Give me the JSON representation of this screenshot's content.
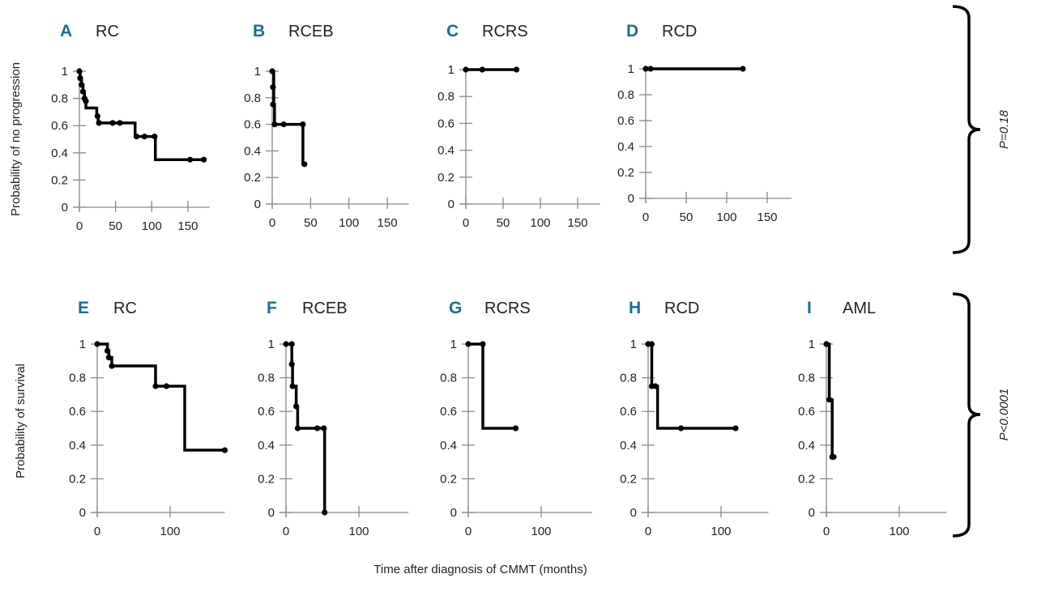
{
  "figure": {
    "ylabel_top": "Probability of no progression",
    "ylabel_bottom": "Probability of survival",
    "xlabel": "Time after diagnosis of CMMT (months)",
    "pvalue_top": "P=0.18",
    "pvalue_bottom": "P<0.0001",
    "letter_color": "#1b6f8f"
  },
  "chart_data": [
    {
      "type": "line",
      "letter": "A",
      "title": "RC",
      "ylabel": "Probability of no progression",
      "xlabel": "Time after diagnosis of CMMT (months)",
      "ylim": [
        0,
        1
      ],
      "xlim": [
        0,
        180
      ],
      "xticks": [
        0,
        50,
        100,
        150
      ],
      "yticks": [
        "0",
        "0.2",
        "0.4",
        "0.6",
        "0.8",
        "1"
      ],
      "steps": [
        [
          0,
          1
        ],
        [
          1,
          0.95
        ],
        [
          3,
          0.9
        ],
        [
          5,
          0.85
        ],
        [
          7,
          0.8
        ],
        [
          9,
          0.73
        ],
        [
          24,
          0.67
        ],
        [
          26,
          0.62
        ],
        [
          77,
          0.52
        ],
        [
          105,
          0.35
        ]
      ],
      "end": 172,
      "censored": [
        [
          0,
          1
        ],
        [
          1,
          0.95
        ],
        [
          3,
          0.9
        ],
        [
          5,
          0.85
        ],
        [
          7,
          0.8
        ],
        [
          9,
          0.78
        ],
        [
          25,
          0.67
        ],
        [
          27,
          0.62
        ],
        [
          46,
          0.62
        ],
        [
          56,
          0.62
        ],
        [
          79,
          0.52
        ],
        [
          90,
          0.52
        ],
        [
          104,
          0.52
        ],
        [
          153,
          0.35
        ],
        [
          172,
          0.35
        ]
      ]
    },
    {
      "type": "line",
      "letter": "B",
      "title": "RCEB",
      "ylabel": "Probability of no progression",
      "xlabel": "Time after diagnosis of CMMT (months)",
      "ylim": [
        0,
        1
      ],
      "xlim": [
        0,
        178
      ],
      "xticks": [
        0,
        50,
        100,
        150
      ],
      "yticks": [
        "0",
        "0.2",
        "0.4",
        "0.6",
        "0.8",
        "1"
      ],
      "steps": [
        [
          0,
          1
        ],
        [
          2,
          0.75
        ],
        [
          3,
          0.6
        ],
        [
          40,
          0.3
        ]
      ],
      "end": 42,
      "censored": [
        [
          0,
          1
        ],
        [
          1,
          0.88
        ],
        [
          1,
          0.75
        ],
        [
          3,
          0.6
        ],
        [
          15,
          0.6
        ],
        [
          40,
          0.6
        ],
        [
          42,
          0.3
        ]
      ]
    },
    {
      "type": "line",
      "letter": "C",
      "title": "RCRS",
      "ylabel": "Probability of no progression",
      "xlabel": "Time after diagnosis of CMMT (months)",
      "ylim": [
        0,
        1
      ],
      "xlim": [
        0,
        180
      ],
      "xticks": [
        0,
        50,
        100,
        150
      ],
      "yticks": [
        "0",
        "0.2",
        "0.4",
        "0.6",
        "0.8",
        "1"
      ],
      "steps": [
        [
          0,
          1
        ]
      ],
      "end": 68,
      "censored": [
        [
          0,
          1
        ],
        [
          22,
          1
        ],
        [
          68,
          1
        ]
      ]
    },
    {
      "type": "line",
      "letter": "D",
      "title": "RCD",
      "ylabel": "Probability of no progression",
      "xlabel": "Time after diagnosis of CMMT (months)",
      "ylim": [
        0,
        1
      ],
      "xlim": [
        0,
        180
      ],
      "xticks": [
        0,
        50,
        100,
        150
      ],
      "yticks": [
        "0",
        "0.2",
        "0.4",
        "0.6",
        "0.8",
        "1"
      ],
      "steps": [
        [
          0,
          1
        ]
      ],
      "end": 120,
      "censored": [
        [
          0,
          1
        ],
        [
          6,
          1
        ],
        [
          120,
          1
        ]
      ]
    },
    {
      "type": "line",
      "letter": "E",
      "title": "RC",
      "ylabel": "Probability of survival",
      "xlabel": "Time after diagnosis of CMMT (months)",
      "ylim": [
        0,
        1
      ],
      "xlim": [
        0,
        175
      ],
      "xticks": [
        0,
        100
      ],
      "yticks": [
        "0",
        "0.2",
        "0.4",
        "0.6",
        "0.8",
        "1"
      ],
      "steps": [
        [
          0,
          1
        ],
        [
          14,
          0.96
        ],
        [
          16,
          0.92
        ],
        [
          20,
          0.87
        ],
        [
          80,
          0.75
        ],
        [
          120,
          0.37
        ]
      ],
      "end": 175,
      "censored": [
        [
          0,
          1
        ],
        [
          14,
          0.96
        ],
        [
          16,
          0.92
        ],
        [
          20,
          0.87
        ],
        [
          80,
          0.75
        ],
        [
          95,
          0.75
        ],
        [
          175,
          0.37
        ]
      ]
    },
    {
      "type": "line",
      "letter": "F",
      "title": "RCEB",
      "ylabel": "Probability of survival",
      "xlabel": "Time after diagnosis of CMMT (months)",
      "ylim": [
        0,
        1
      ],
      "xlim": [
        0,
        168
      ],
      "xticks": [
        0,
        100
      ],
      "yticks": [
        "0",
        "0.2",
        "0.4",
        "0.6",
        "0.8",
        "1"
      ],
      "steps": [
        [
          0,
          1
        ],
        [
          8,
          0.88
        ],
        [
          9,
          0.75
        ],
        [
          14,
          0.63
        ],
        [
          16,
          0.5
        ],
        [
          53,
          0
        ]
      ],
      "end": 53,
      "censored": [
        [
          0,
          1
        ],
        [
          8,
          1
        ],
        [
          8,
          0.88
        ],
        [
          9,
          0.75
        ],
        [
          14,
          0.63
        ],
        [
          16,
          0.5
        ],
        [
          43,
          0.5
        ],
        [
          52,
          0.5
        ],
        [
          53,
          0
        ]
      ]
    },
    {
      "type": "line",
      "letter": "G",
      "title": "RCRS",
      "ylabel": "Probability of survival",
      "xlabel": "Time after diagnosis of CMMT (months)",
      "ylim": [
        0,
        1
      ],
      "xlim": [
        0,
        170
      ],
      "xticks": [
        0,
        100
      ],
      "yticks": [
        "0",
        "0.2",
        "0.4",
        "0.6",
        "0.8",
        "1"
      ],
      "steps": [
        [
          0,
          1
        ],
        [
          20,
          0.5
        ]
      ],
      "end": 65,
      "censored": [
        [
          0,
          1
        ],
        [
          20,
          1
        ],
        [
          65,
          0.5
        ]
      ]
    },
    {
      "type": "line",
      "letter": "H",
      "title": "RCD",
      "ylabel": "Probability of survival",
      "xlabel": "Time after diagnosis of CMMT (months)",
      "ylim": [
        0,
        1
      ],
      "xlim": [
        0,
        165
      ],
      "xticks": [
        0,
        100
      ],
      "yticks": [
        "0",
        "0.2",
        "0.4",
        "0.6",
        "0.8",
        "1"
      ],
      "steps": [
        [
          0,
          1
        ],
        [
          5,
          0.75
        ],
        [
          13,
          0.5
        ]
      ],
      "end": 120,
      "censored": [
        [
          0,
          1
        ],
        [
          5,
          1
        ],
        [
          5,
          0.75
        ],
        [
          10,
          0.75
        ],
        [
          45,
          0.5
        ],
        [
          120,
          0.5
        ]
      ]
    },
    {
      "type": "line",
      "letter": "I",
      "title": "AML",
      "ylabel": "Probability of survival",
      "xlabel": "Time after diagnosis of CMMT (months)",
      "ylim": [
        0,
        1
      ],
      "xlim": [
        0,
        165
      ],
      "xticks": [
        0,
        100
      ],
      "yticks": [
        "0",
        "0.2",
        "0.4",
        "0.6",
        "0.8",
        "1"
      ],
      "steps": [
        [
          0,
          1
        ],
        [
          4,
          0.67
        ],
        [
          8,
          0.33
        ]
      ],
      "end": 10,
      "censored": [
        [
          0,
          1
        ],
        [
          4,
          0.67
        ],
        [
          8,
          0.33
        ],
        [
          10,
          0.33
        ]
      ]
    }
  ]
}
